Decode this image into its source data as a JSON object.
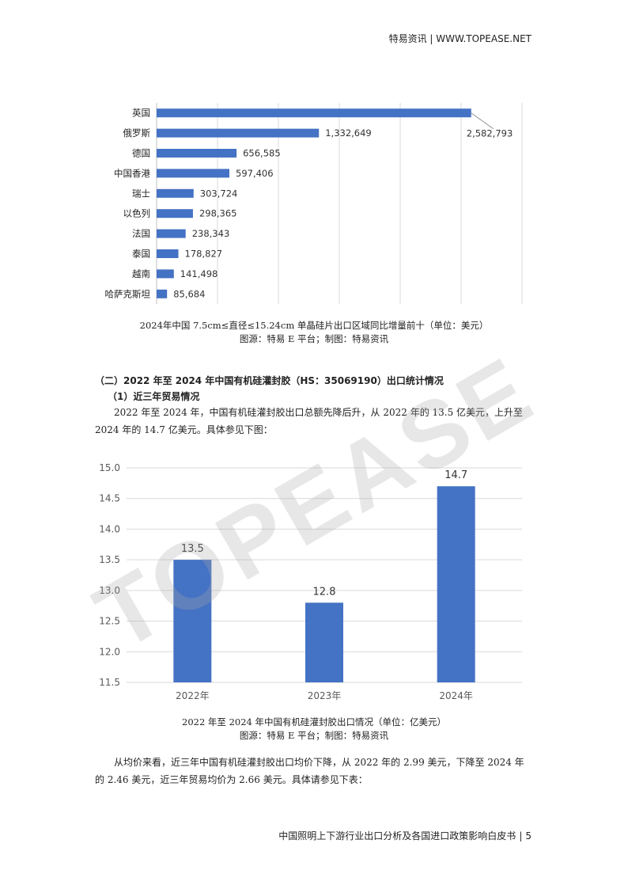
{
  "header": {
    "text": "特易资讯 | WWW.TOPEASE.NET"
  },
  "watermark": "TOPEASE",
  "chart1": {
    "caption_line1": "2024年中国 7.5cm≤直径≤15.24cm 单晶硅片出口区域同比增量前十（单位：美元）",
    "caption_line2": "图源：特易 E 平台；制图：特易资讯"
  },
  "section": {
    "title": "（二）2022 年至 2024 年中国有机硅灌封胶（HS：35069190）出口统计情况",
    "subtitle": "（1）近三年贸易情况",
    "para1": "2022 年至 2024 年，中国有机硅灌封胶出口总额先降后升，从 2022 年的 13.5 亿美元，上升至 2024 年的 14.7 亿美元。具体参见下图："
  },
  "chart2": {
    "caption_line1": "2022 年至 2024 年中国有机硅灌封胶出口情况（单位：亿美元）",
    "caption_line2": "图源：特易 E 平台；制图：特易资讯"
  },
  "para2": "从均价来看，近三年中国有机硅灌封胶出口均价下降，从 2022 年的 2.99 美元，下降至 2024 年的 2.46 美元，近三年贸易均价为 2.66 美元。具体请参见下表：",
  "footer": {
    "title": "中国照明上下游行业出口分析及各国进口政策影响白皮书",
    "page": "5"
  },
  "colors": {
    "bar": "#4472C4",
    "grid": "#d9d9d9"
  },
  "chart_data": [
    {
      "type": "bar",
      "orientation": "horizontal",
      "title": "",
      "categories": [
        "英国",
        "俄罗斯",
        "德国",
        "中国香港",
        "瑞士",
        "以色列",
        "法国",
        "泰国",
        "越南",
        "哈萨克斯坦"
      ],
      "values": [
        2582793,
        1332649,
        656585,
        597406,
        303724,
        298365,
        238343,
        178827,
        141498,
        85684
      ],
      "value_labels": [
        "2,582,793",
        "1,332,649",
        "656,585",
        "597,406",
        "303,724",
        "298,365",
        "238,343",
        "178,827",
        "141,498",
        "85,684"
      ],
      "xlim": [
        0,
        3000000
      ],
      "grid": true
    },
    {
      "type": "bar",
      "orientation": "vertical",
      "title": "",
      "categories": [
        "2022年",
        "2023年",
        "2024年"
      ],
      "values": [
        13.5,
        12.8,
        14.7
      ],
      "value_labels": [
        "13.5",
        "12.8",
        "14.7"
      ],
      "ylim": [
        11.5,
        15.0
      ],
      "yticks": [
        "11.5",
        "12.0",
        "12.5",
        "13.0",
        "13.5",
        "14.0",
        "14.5",
        "15.0"
      ],
      "grid": true
    }
  ]
}
